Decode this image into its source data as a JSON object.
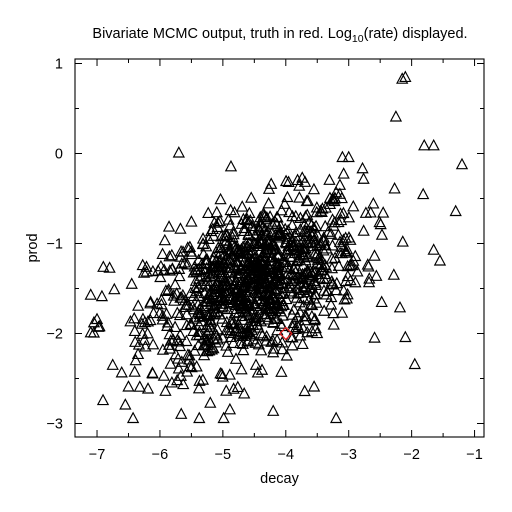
{
  "chart_data": {
    "type": "scatter",
    "title": {
      "before": "Bivariate MCMC output, truth in red. Log",
      "subscript": "10",
      "after": "(rate) displayed."
    },
    "xlabel": "decay",
    "ylabel": "prod",
    "xlim": [
      -7.35,
      -0.85
    ],
    "ylim": [
      -3.15,
      1.05
    ],
    "xticks": [
      -7,
      -6,
      -5,
      -4,
      -3,
      -2,
      -1
    ],
    "yticks": [
      -3,
      -2,
      -1,
      0,
      1
    ],
    "marker": "open-triangle",
    "marker_color": "#000000",
    "truth_marker": "open-diamond",
    "truth_color": "#e02020",
    "truth": {
      "x": -4.0,
      "y": -2.0
    },
    "sample_count": 1100,
    "regression": {
      "intercept": -0.36,
      "slope": 0.24
    },
    "noise_sd": 0.42,
    "x_center": -4.5,
    "x_sd": 0.85,
    "points": [
      {
        "x": -2.15,
        "y": 0.82
      },
      {
        "x": -2.1,
        "y": 0.84
      },
      {
        "x": -5.7,
        "y": 0.0
      },
      {
        "x": -1.2,
        "y": -0.13
      },
      {
        "x": -1.3,
        "y": -0.65
      },
      {
        "x": -2.25,
        "y": 0.4
      },
      {
        "x": -7.0,
        "y": -1.85
      },
      {
        "x": -7.05,
        "y": -2.0
      },
      {
        "x": -6.9,
        "y": -1.27
      },
      {
        "x": -6.8,
        "y": -1.28
      },
      {
        "x": -3.2,
        "y": -2.95
      },
      {
        "x": -3.7,
        "y": -2.65
      },
      {
        "x": -6.5,
        "y": -2.6
      },
      {
        "x": -6.55,
        "y": -2.8
      },
      {
        "x": -5.2,
        "y": -2.78
      },
      {
        "x": -2.1,
        "y": -2.05
      },
      {
        "x": -1.95,
        "y": -2.35
      },
      {
        "x": -1.65,
        "y": -1.08
      },
      {
        "x": -1.55,
        "y": -1.2
      },
      {
        "x": -4.2,
        "y": -2.87
      },
      {
        "x": -3.55,
        "y": -2.6
      },
      {
        "x": -1.8,
        "y": 0.08
      },
      {
        "x": -1.65,
        "y": 0.08
      },
      {
        "x": -3.0,
        "y": -0.05
      },
      {
        "x": -3.1,
        "y": -0.05
      }
    ]
  }
}
